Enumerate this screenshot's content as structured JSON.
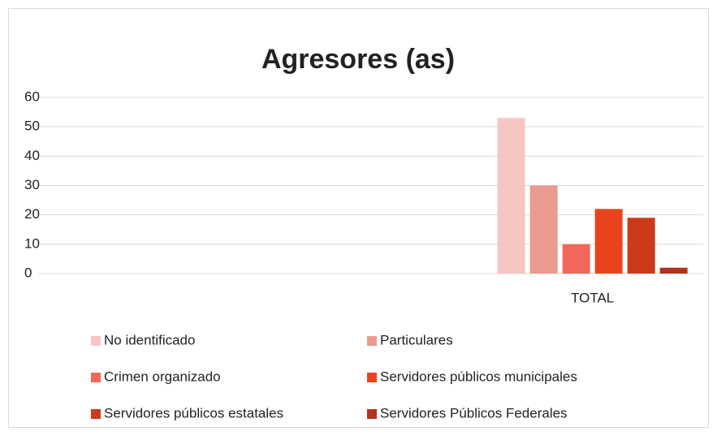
{
  "chart_data": {
    "type": "bar",
    "title": "Agresores (as)",
    "categories": [
      null,
      null,
      "TOTAL"
    ],
    "series": [
      {
        "name": "No identificado",
        "color": "#f5c6c1",
        "values": [
          null,
          null,
          53
        ]
      },
      {
        "name": "Particulares",
        "color": "#eb9a90",
        "values": [
          null,
          null,
          30
        ]
      },
      {
        "name": "Crimen organizado",
        "color": "#f2675a",
        "values": [
          null,
          null,
          10
        ]
      },
      {
        "name": "Servidores públicos municipales",
        "color": "#e9431d",
        "values": [
          null,
          null,
          22
        ]
      },
      {
        "name": "Servidores públicos estatales",
        "color": "#cc3a1c",
        "values": [
          null,
          null,
          19
        ]
      },
      {
        "name": "Servidores Públicos Federales",
        "color": "#b3321f",
        "values": [
          null,
          null,
          2
        ]
      }
    ],
    "ylim": [
      0,
      60
    ],
    "yticks": [
      0,
      10,
      20,
      30,
      40,
      50,
      60
    ],
    "grid": true,
    "legend": "bottom"
  }
}
